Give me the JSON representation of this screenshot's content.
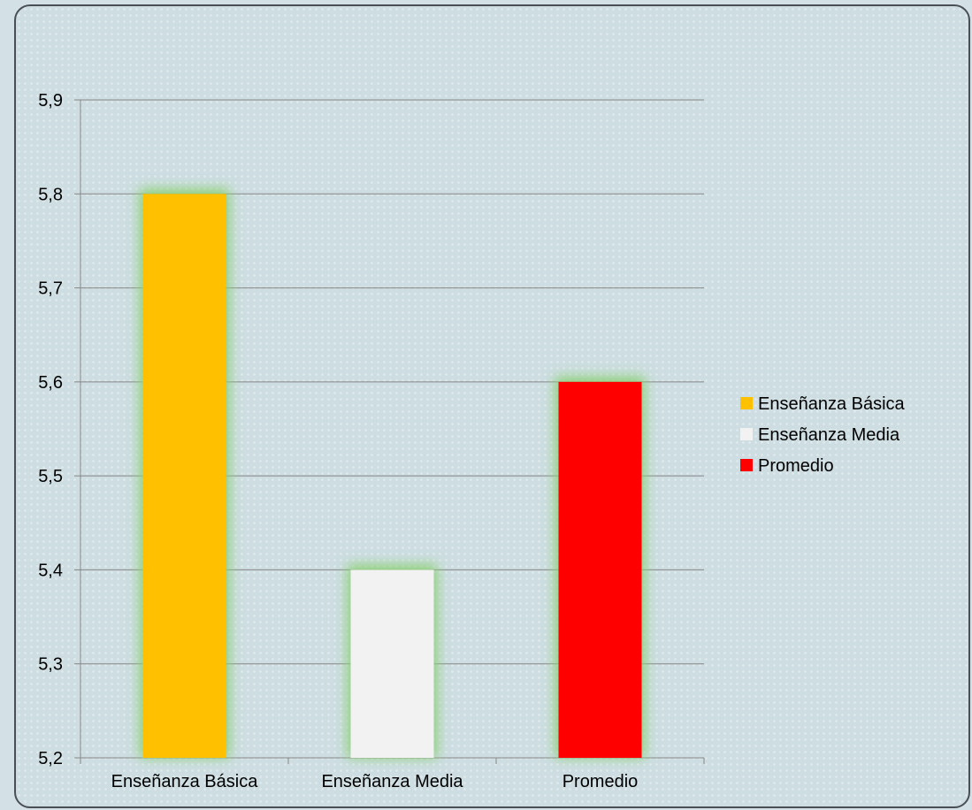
{
  "chart_data": {
    "type": "bar",
    "categories": [
      "Enseñanza Básica",
      "Enseñanza Media",
      "Promedio"
    ],
    "values": [
      5.8,
      5.4,
      5.6
    ],
    "colors": [
      "#FFC000",
      "#F2F2F2",
      "#FF0000"
    ],
    "glow_color": "#8fd07a",
    "ylim": [
      5.2,
      5.9
    ],
    "yticks": [
      "5,2",
      "5,3",
      "5,4",
      "5,5",
      "5,6",
      "5,7",
      "5,8",
      "5,9"
    ],
    "grid": true,
    "legend": {
      "position": "right",
      "entries": [
        "Enseñanza Básica",
        "Enseñanza Media",
        "Promedio"
      ]
    }
  }
}
